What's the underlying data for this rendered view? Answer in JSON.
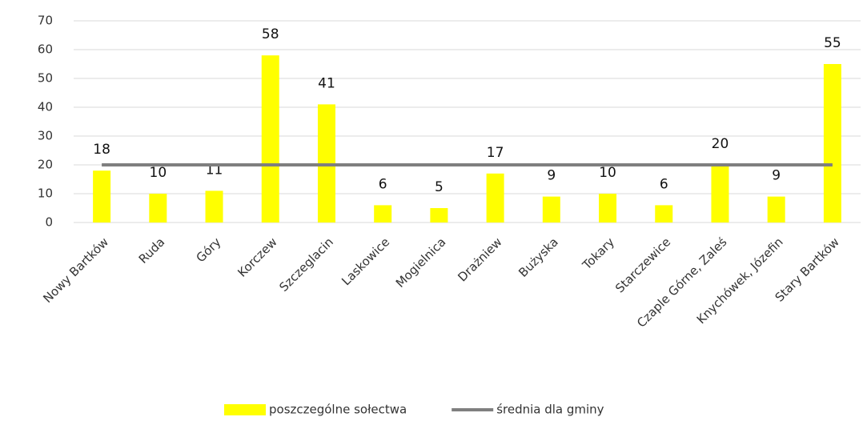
{
  "chart_data": {
    "type": "bar",
    "categories": [
      "Nowy Bartków",
      "Ruda",
      "Góry",
      "Korczew",
      "Szczeglacin",
      "Laskowice",
      "Mogielnica",
      "Drażniew",
      "Bużyska",
      "Tokary",
      "Starczewice",
      "Czaple Górne, Zaleś",
      "Knychówek, Józefin",
      "Stary Bartków"
    ],
    "series": [
      {
        "name": "poszczególne sołectwa",
        "type": "bar",
        "color": "#ffff00",
        "values": [
          18,
          10,
          11,
          58,
          41,
          6,
          5,
          17,
          9,
          10,
          6,
          20,
          9,
          55
        ]
      },
      {
        "name": "średnia dla gminy",
        "type": "line",
        "color": "#7f7f7f",
        "values": [
          20,
          20,
          20,
          20,
          20,
          20,
          20,
          20,
          20,
          20,
          20,
          20,
          20,
          20
        ]
      }
    ],
    "ylim": [
      0,
      70
    ],
    "yticks": [
      0,
      10,
      20,
      30,
      40,
      50,
      60,
      70
    ],
    "grid": true,
    "legend": "bottom"
  }
}
